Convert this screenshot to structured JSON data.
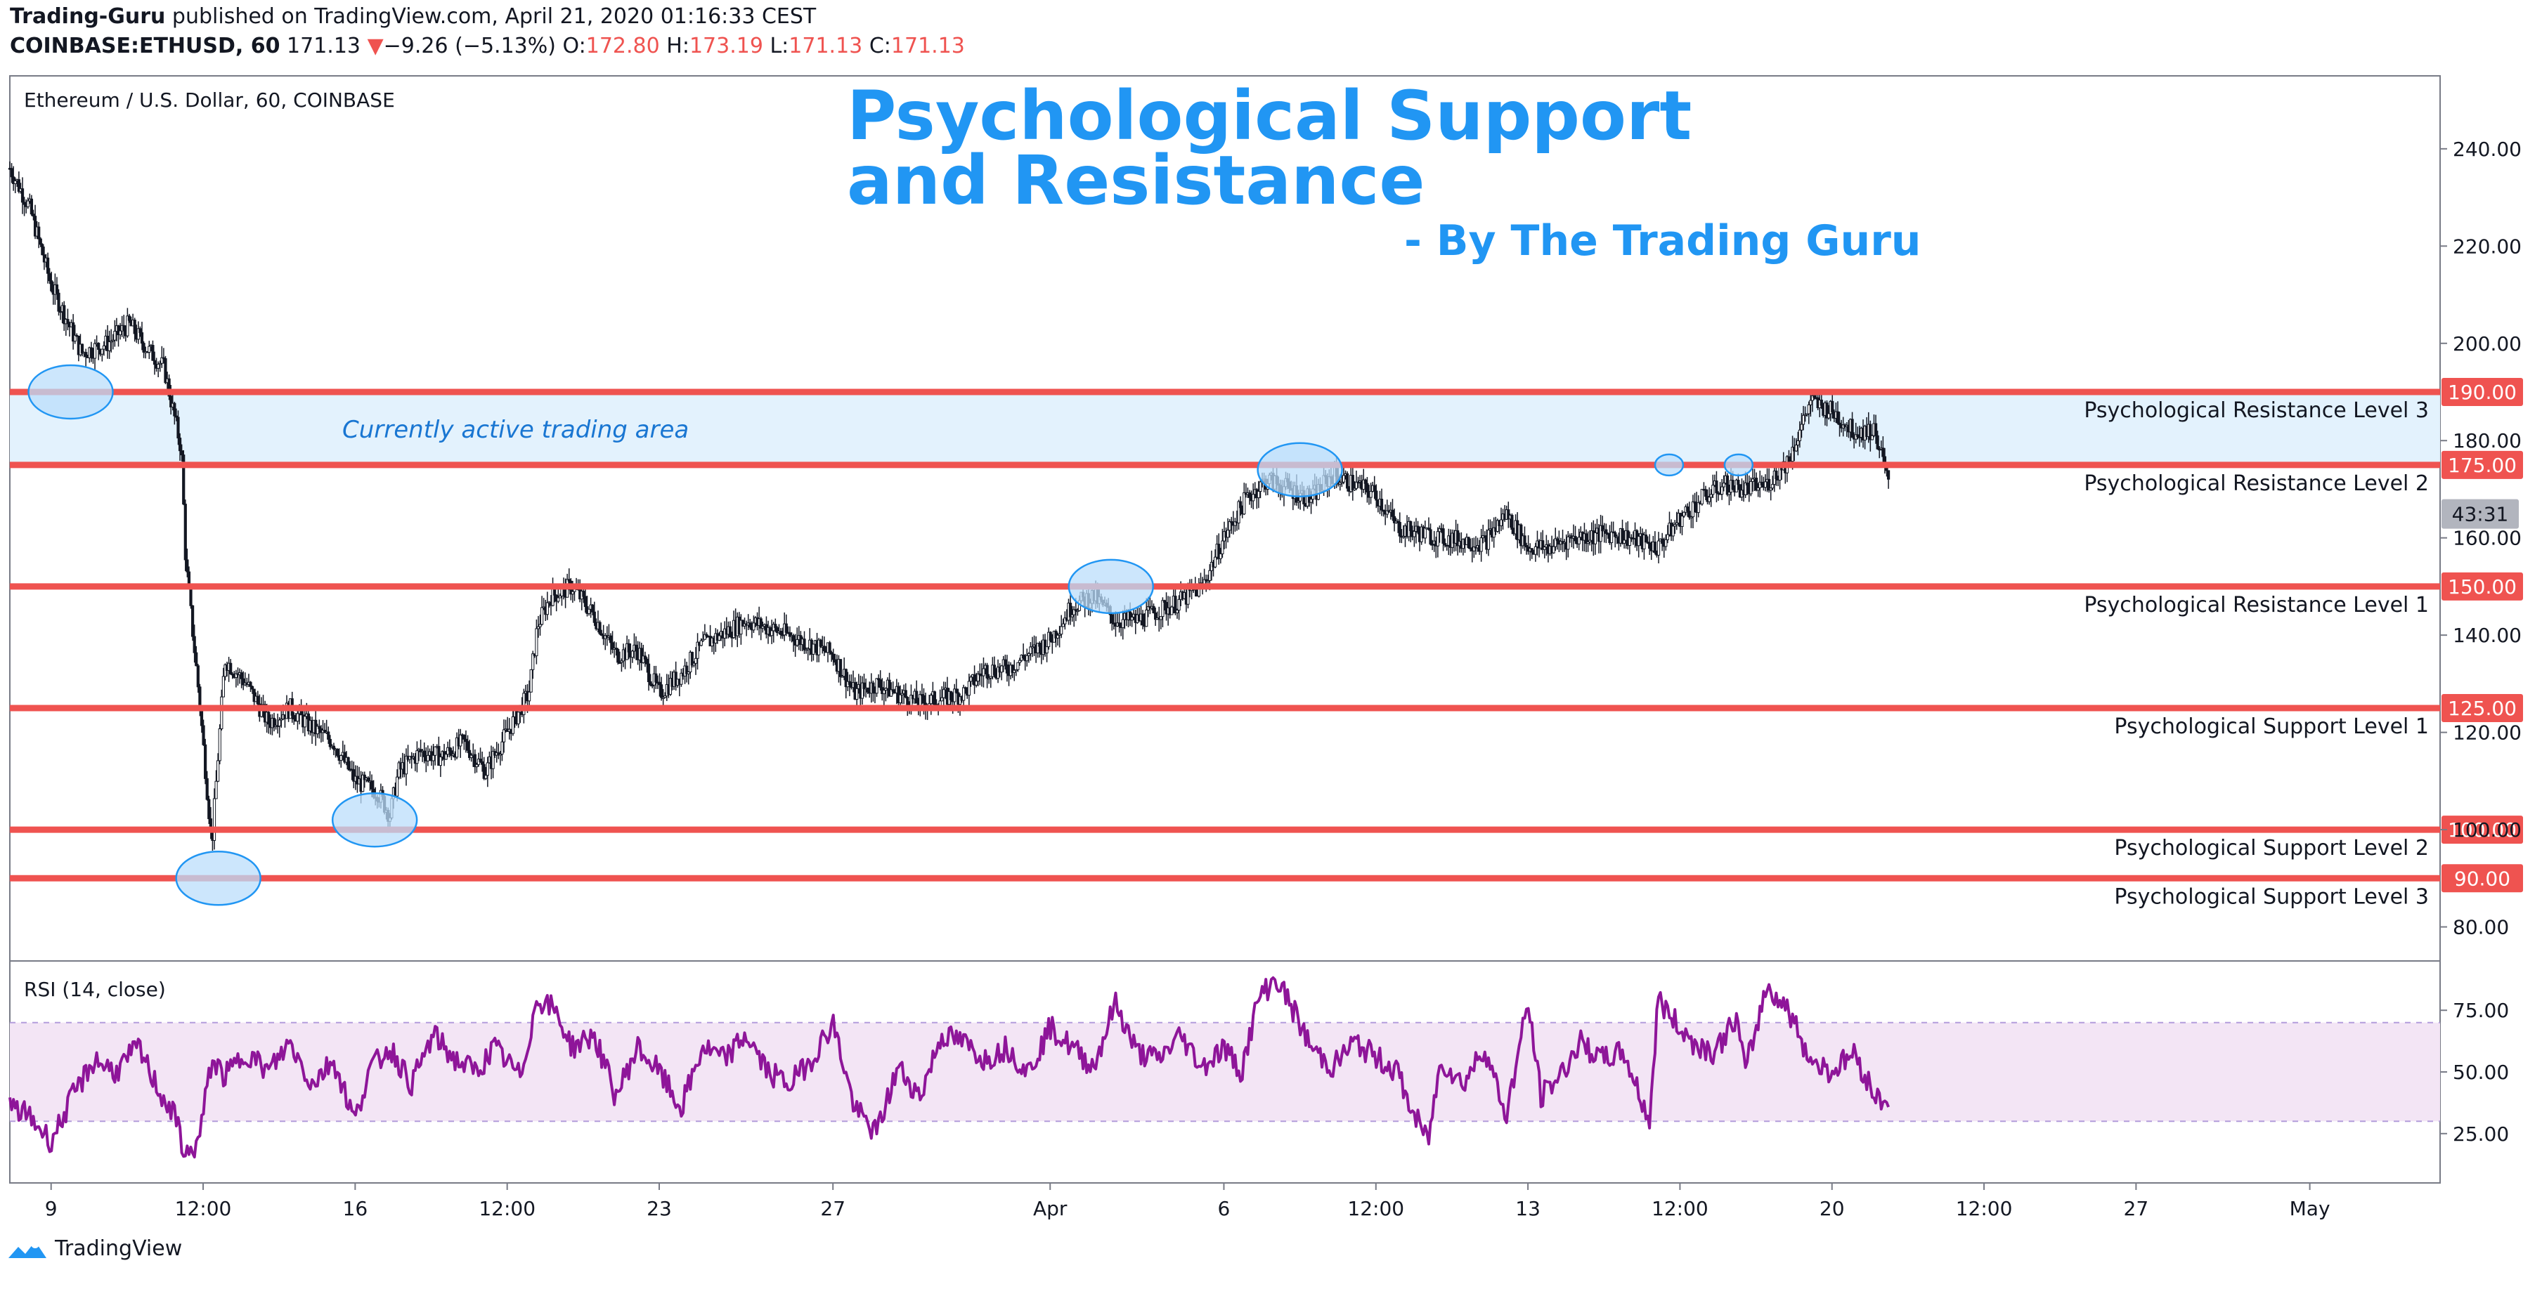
{
  "header": {
    "line1_author": "Trading-Guru",
    "line1_rest": " published on TradingView.com, April 21, 2020 01:16:33 CEST",
    "symbol": "COINBASE:ETHUSD, 60",
    "last": "171.13",
    "change": "−9.26 (−5.13%)",
    "o_label": "O:",
    "o_val": "172.80",
    "h_label": "H:",
    "h_val": "173.19",
    "l_label": "L:",
    "l_val": "171.13",
    "c_label": "C:",
    "c_val": "171.13"
  },
  "chart_title": {
    "legend": "Ethereum / U.S. Dollar, 60, COINBASE",
    "line1": "Psychological Support",
    "line2": "and Resistance",
    "byline": "- By The Trading Guru"
  },
  "annotation": {
    "active_area": "Currently active trading area",
    "countdown": "43:31"
  },
  "colors": {
    "level_line": "#ef5350",
    "title_blue": "#2196f3",
    "active_band": "#e3f2fd",
    "rsi_line": "#8e1599",
    "rsi_band": "#f3e5f5",
    "candles": "#131722"
  },
  "rsi_panel": {
    "legend": "RSI (14, close)"
  },
  "brand": {
    "name": "TradingView",
    "icon": "tradingview-logo-icon"
  },
  "chart_data": [
    {
      "type": "candlestick",
      "title": "Ethereum / U.S. Dollar, 60, COINBASE",
      "ylim": [
        73,
        255
      ],
      "y_ticks": [
        "240.00",
        "220.00",
        "200.00",
        "180.00",
        "160.00",
        "140.00",
        "120.00",
        "100.00",
        "80.00"
      ],
      "y_tick_values": [
        240,
        220,
        200,
        180,
        160,
        140,
        120,
        100,
        80
      ],
      "x_ticks": [
        "9",
        "12:00",
        "16",
        "12:00",
        "23",
        "27",
        "Apr",
        "6",
        "12:00",
        "13",
        "12:00",
        "20",
        "12:00",
        "27",
        "May"
      ],
      "x_tick_days": [
        9,
        12.5,
        16,
        19.5,
        23,
        27,
        32,
        36,
        39.5,
        43,
        46.5,
        50,
        53.5,
        57,
        61
      ],
      "x_range_days": [
        8.05,
        64
      ],
      "price_path": {
        "days": [
          8.05,
          8.5,
          9.0,
          9.7,
          10.3,
          10.8,
          11.2,
          11.6,
          12.0,
          12.1,
          12.4,
          12.7,
          13.0,
          13.5,
          14.0,
          14.5,
          15.0,
          15.5,
          16.0,
          16.5,
          16.8,
          17.0,
          17.5,
          18.0,
          18.5,
          19.0,
          19.5,
          20.0,
          20.2,
          20.5,
          21.0,
          21.5,
          22.0,
          22.5,
          23.0,
          23.5,
          24.0,
          25.0,
          26.0,
          27.0,
          27.5,
          28.0,
          29.0,
          30.0,
          30.5,
          31.0,
          32.0,
          32.5,
          33.0,
          33.5,
          34.0,
          35.0,
          35.5,
          36.0,
          36.5,
          37.0,
          37.5,
          38.0,
          38.5,
          39.0,
          39.5,
          40.0,
          41.0,
          42.0,
          42.5,
          43.0,
          43.5,
          44.0,
          45.0,
          46.0,
          46.5,
          47.0,
          47.5,
          48.0,
          48.5,
          49.0,
          49.5,
          50.0,
          50.5,
          51.0,
          51.3
        ],
        "prices": [
          236,
          228,
          212,
          198,
          200,
          204,
          199,
          195,
          178,
          155,
          128,
          97,
          135,
          130,
          122,
          125,
          121,
          118,
          110,
          108,
          103,
          112,
          116,
          115,
          118,
          112,
          120,
          128,
          142,
          148,
          150,
          144,
          136,
          137,
          128,
          132,
          138,
          143,
          140,
          136,
          128,
          130,
          126,
          128,
          133,
          133,
          139,
          146,
          148,
          143,
          143,
          147,
          150,
          160,
          168,
          172,
          170,
          168,
          173,
          171,
          169,
          162,
          160,
          159,
          165,
          158,
          158,
          160,
          161,
          158,
          164,
          168,
          171,
          170,
          171,
          176,
          188,
          186,
          182,
          182,
          171
        ]
      },
      "levels": [
        {
          "value": 190,
          "tag": "190.00",
          "label": "Psychological Resistance Level 3"
        },
        {
          "value": 175,
          "tag": "175.00",
          "label": "Psychological Resistance Level 2"
        },
        {
          "value": 150,
          "tag": "150.00",
          "label": "Psychological Resistance Level 1"
        },
        {
          "value": 125,
          "tag": "125.00",
          "label": "Psychological Support Level 1"
        },
        {
          "value": 100,
          "tag": "100.00",
          "label": "Psychological Support Level 2"
        },
        {
          "value": 90,
          "tag": "90.00",
          "label": "Psychological Support Level 3"
        }
      ],
      "active_area": [
        175,
        190
      ],
      "last_price": 171.13,
      "touch_markers": [
        {
          "day": 9.45,
          "price": 190,
          "size": "large"
        },
        {
          "day": 12.85,
          "price": 90,
          "size": "large"
        },
        {
          "day": 16.45,
          "price": 102,
          "size": "large"
        },
        {
          "day": 33.4,
          "price": 150,
          "size": "large"
        },
        {
          "day": 37.75,
          "price": 174,
          "size": "large"
        },
        {
          "day": 46.25,
          "price": 175,
          "size": "small"
        },
        {
          "day": 47.85,
          "price": 175,
          "size": "small"
        }
      ]
    },
    {
      "type": "line",
      "title": "RSI (14, close)",
      "ylim": [
        5,
        95
      ],
      "y_ticks": [
        "75.00",
        "50.00",
        "25.00"
      ],
      "y_tick_values": [
        75,
        50,
        25
      ],
      "band": [
        30,
        70
      ],
      "series": [
        {
          "x": [
            8.05,
            8.5,
            9.0,
            9.5,
            10.0,
            10.5,
            11.0,
            11.5,
            11.9,
            12.1,
            12.4,
            12.7,
            13.0,
            13.5,
            14.0,
            14.5,
            15.0,
            15.5,
            16.0,
            16.3,
            16.8,
            17.3,
            17.8,
            18.3,
            18.8,
            19.2,
            19.8,
            20.2,
            20.6,
            21.0,
            21.5,
            22.0,
            22.5,
            23.0,
            23.5,
            24.0,
            24.5,
            25.0,
            25.5,
            26.0,
            26.5,
            27.0,
            27.5,
            28.0,
            28.5,
            29.0,
            29.5,
            30.0,
            30.5,
            31.0,
            31.5,
            32.0,
            32.5,
            33.0,
            33.5,
            34.0,
            34.5,
            35.0,
            35.5,
            36.0,
            36.4,
            36.8,
            37.2,
            37.6,
            38.0,
            38.5,
            39.0,
            39.5,
            40.0,
            40.3,
            40.7,
            41.0,
            41.5,
            42.0,
            42.5,
            43.0,
            43.3,
            43.8,
            44.2,
            44.7,
            45.2,
            45.8,
            46.0,
            46.3,
            46.8,
            47.3,
            47.8,
            48.0,
            48.5,
            49.0,
            49.5,
            50.0,
            50.5,
            51.0,
            51.3
          ],
          "values": [
            36,
            32,
            22,
            40,
            55,
            50,
            60,
            42,
            30,
            15,
            22,
            55,
            48,
            58,
            50,
            62,
            45,
            55,
            30,
            50,
            60,
            45,
            65,
            55,
            50,
            60,
            48,
            80,
            75,
            60,
            65,
            40,
            60,
            50,
            35,
            60,
            55,
            65,
            50,
            45,
            55,
            70,
            35,
            25,
            52,
            40,
            65,
            62,
            55,
            60,
            50,
            68,
            60,
            52,
            78,
            58,
            55,
            65,
            52,
            60,
            50,
            80,
            88,
            75,
            60,
            52,
            62,
            56,
            50,
            35,
            22,
            55,
            45,
            60,
            32,
            78,
            40,
            50,
            62,
            55,
            58,
            30,
            80,
            72,
            62,
            58,
            72,
            50,
            85,
            75,
            55,
            50,
            58,
            40,
            38
          ]
        }
      ]
    }
  ]
}
